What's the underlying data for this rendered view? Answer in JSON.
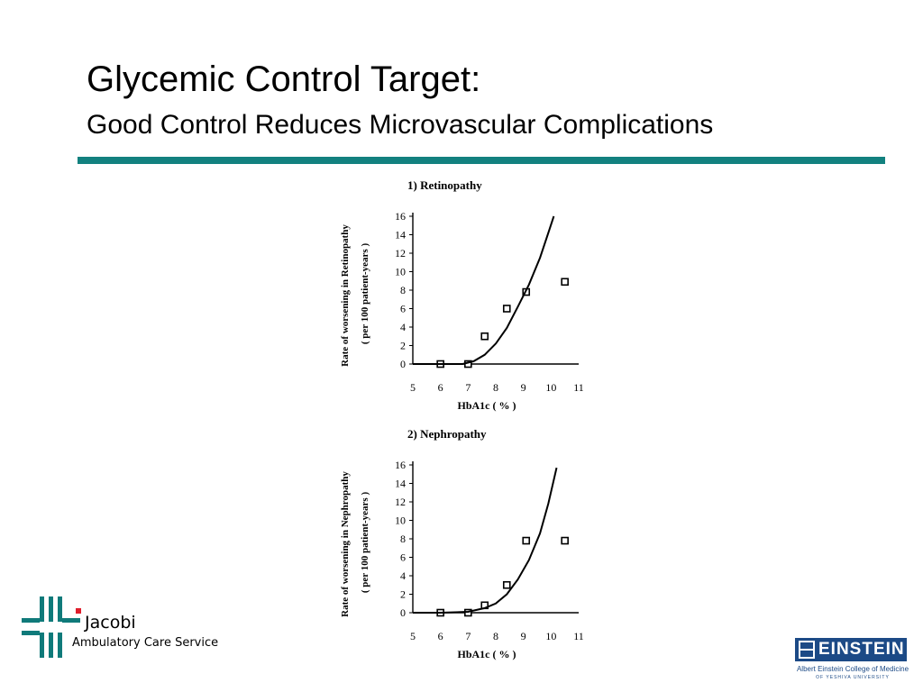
{
  "slide": {
    "title": "Glycemic Control Target:",
    "subtitle": "Good Control Reduces Microvascular Complications"
  },
  "colors": {
    "rule": "#12817f",
    "einstein_blue": "#1c4a86",
    "jacobi_teal": "#0f7a7a",
    "jacobi_red": "#e01e2c"
  },
  "logos": {
    "jacobi_name": "Jacobi",
    "jacobi_sub": "Ambulatory Care Service",
    "einstein_word": "EINSTEIN",
    "einstein_line1": "Albert Einstein College of Medicine",
    "einstein_line2": "OF YESHIVA UNIVERSITY"
  },
  "chart_data": [
    {
      "type": "scatter",
      "title": "1)  Retinopathy",
      "xlabel": "HbA1c ( % )",
      "ylabel": "Rate of worsening in Retinopathy",
      "ylabel2": "( per 100 patient-years )",
      "xlim": [
        5,
        11
      ],
      "ylim": [
        0,
        16
      ],
      "xticks": [
        5,
        6,
        7,
        8,
        9,
        10,
        11
      ],
      "yticks": [
        0,
        2,
        4,
        6,
        8,
        10,
        12,
        14,
        16
      ],
      "grid": false,
      "series": [
        {
          "type": "scatter",
          "marker": "open-square",
          "points": [
            [
              6.0,
              0.0
            ],
            [
              7.0,
              0.0
            ],
            [
              7.6,
              3.0
            ],
            [
              8.4,
              6.0
            ],
            [
              9.1,
              7.8
            ],
            [
              10.5,
              8.9
            ]
          ]
        },
        {
          "type": "line",
          "curve": "fitted",
          "points": [
            [
              5.0,
              0.0
            ],
            [
              6.0,
              0.0
            ],
            [
              6.8,
              0.0
            ],
            [
              7.2,
              0.3
            ],
            [
              7.6,
              1.0
            ],
            [
              8.0,
              2.2
            ],
            [
              8.4,
              3.9
            ],
            [
              8.8,
              6.2
            ],
            [
              9.2,
              8.6
            ],
            [
              9.6,
              11.5
            ],
            [
              9.9,
              14.2
            ],
            [
              10.1,
              16.0
            ]
          ]
        }
      ]
    },
    {
      "type": "scatter",
      "title": "2) Nephropathy",
      "xlabel": "HbA1c ( % )",
      "ylabel": "Rate of worsening in Nephropathy",
      "ylabel2": "( per 100 patient-years )",
      "xlim": [
        5,
        11
      ],
      "ylim": [
        0,
        16
      ],
      "xticks": [
        5,
        6,
        7,
        8,
        9,
        10,
        11
      ],
      "yticks": [
        0,
        2,
        4,
        6,
        8,
        10,
        12,
        14,
        16
      ],
      "grid": false,
      "series": [
        {
          "type": "scatter",
          "marker": "open-square",
          "points": [
            [
              6.0,
              0.0
            ],
            [
              7.0,
              0.0
            ],
            [
              7.6,
              0.8
            ],
            [
              8.4,
              3.0
            ],
            [
              9.1,
              7.8
            ],
            [
              10.5,
              7.8
            ]
          ]
        },
        {
          "type": "line",
          "curve": "fitted",
          "points": [
            [
              5.0,
              0.0
            ],
            [
              6.0,
              0.0
            ],
            [
              7.0,
              0.1
            ],
            [
              7.6,
              0.5
            ],
            [
              8.0,
              1.0
            ],
            [
              8.4,
              2.0
            ],
            [
              8.8,
              3.6
            ],
            [
              9.2,
              5.7
            ],
            [
              9.6,
              8.6
            ],
            [
              9.9,
              11.8
            ],
            [
              10.2,
              15.7
            ]
          ]
        }
      ]
    }
  ]
}
